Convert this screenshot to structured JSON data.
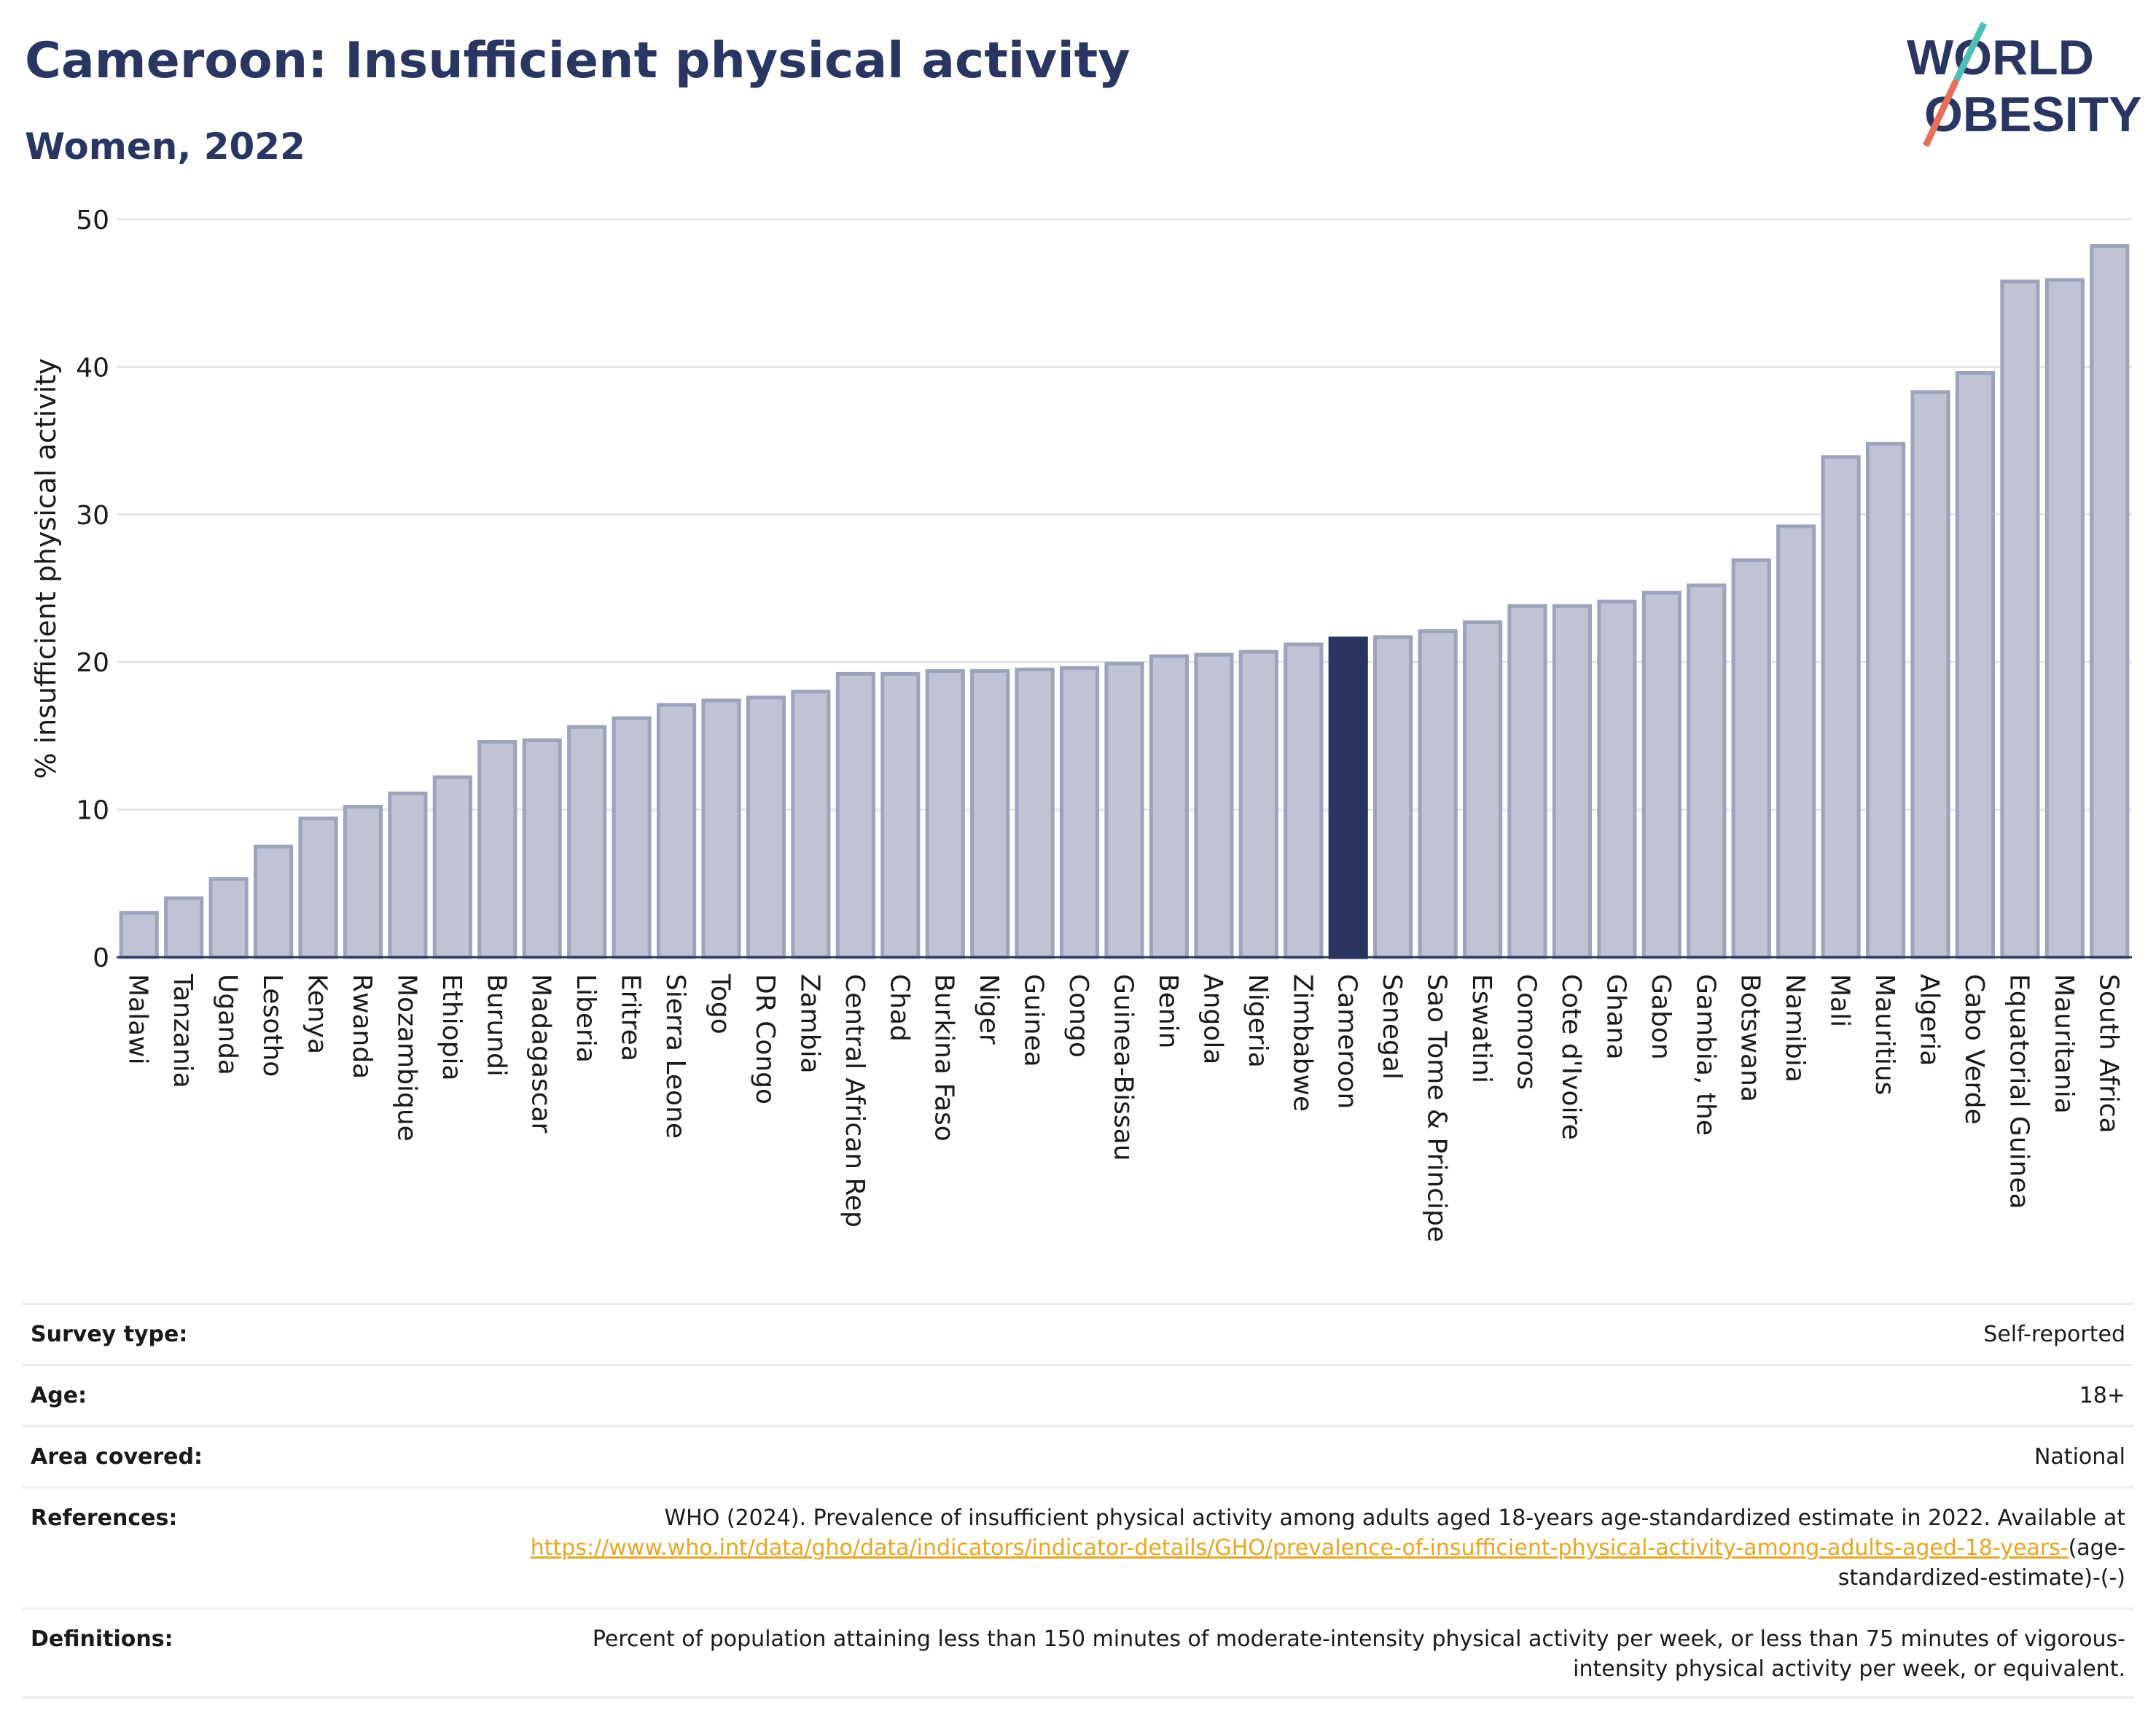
{
  "title": "Cameroon: Insufficient physical activity",
  "subtitle": "Women, 2022",
  "logo": {
    "line1": "WORLD",
    "line2": "OBESITY"
  },
  "colors": {
    "title": "#2b3562",
    "bar": "#bfc3d3",
    "bar_border": "#9ea3bb",
    "highlight": "#2b3562",
    "link": "#e7a623"
  },
  "chart_data": {
    "type": "bar",
    "ylabel": "% insufficient physical activity",
    "ylim": [
      0,
      50
    ],
    "yticks": [
      0,
      10,
      20,
      30,
      40,
      50
    ],
    "grid": true,
    "highlight": "Cameroon",
    "categories": [
      "Malawi",
      "Tanzania",
      "Uganda",
      "Lesotho",
      "Kenya",
      "Rwanda",
      "Mozambique",
      "Ethiopia",
      "Burundi",
      "Madagascar",
      "Liberia",
      "Eritrea",
      "Sierra Leone",
      "Togo",
      "DR Congo",
      "Zambia",
      "Central African Rep",
      "Chad",
      "Burkina Faso",
      "Niger",
      "Guinea",
      "Congo",
      "Guinea-Bissau",
      "Benin",
      "Angola",
      "Nigeria",
      "Zimbabwe",
      "Cameroon",
      "Senegal",
      "Sao Tome & Principe",
      "Eswatini",
      "Comoros",
      "Cote d'Ivoire",
      "Ghana",
      "Gabon",
      "Gambia, the",
      "Botswana",
      "Namibia",
      "Mali",
      "Mauritius",
      "Algeria",
      "Cabo Verde",
      "Equatorial Guinea",
      "Mauritania",
      "South Africa"
    ],
    "values": [
      3.0,
      4.0,
      5.3,
      7.5,
      9.4,
      10.2,
      11.1,
      12.2,
      14.6,
      14.7,
      15.6,
      16.2,
      17.1,
      17.4,
      17.6,
      18.0,
      19.2,
      19.2,
      19.4,
      19.4,
      19.5,
      19.6,
      19.9,
      20.4,
      20.5,
      20.7,
      21.2,
      21.6,
      21.7,
      22.1,
      22.7,
      23.8,
      23.8,
      24.1,
      24.7,
      25.2,
      26.9,
      29.2,
      33.9,
      34.8,
      38.3,
      39.6,
      45.8,
      45.9,
      48.2
    ]
  },
  "info": {
    "survey_label": "Survey type:",
    "survey_value": "Self-reported",
    "age_label": "Age:",
    "age_value": "18+",
    "area_label": "Area covered:",
    "area_value": "National",
    "ref_label": "References:",
    "ref_text": "WHO (2024). Prevalence of insufficient physical activity among adults aged 18-years age-standardized estimate in 2022. Available at",
    "ref_link": "https://www.who.int/data/gho/data/indicators/indicator-details/GHO/prevalence-of-insufficient-physical-activity-among-adults-aged-18-years-",
    "ref_suffix": "(age-standardized-estimate)-(-)",
    "def_label": "Definitions:",
    "def_text": "Percent of population attaining less than 150 minutes of moderate-intensity physical activity per week, or less than 75 minutes of vigorous-intensity physical activity per week, or equivalent."
  }
}
